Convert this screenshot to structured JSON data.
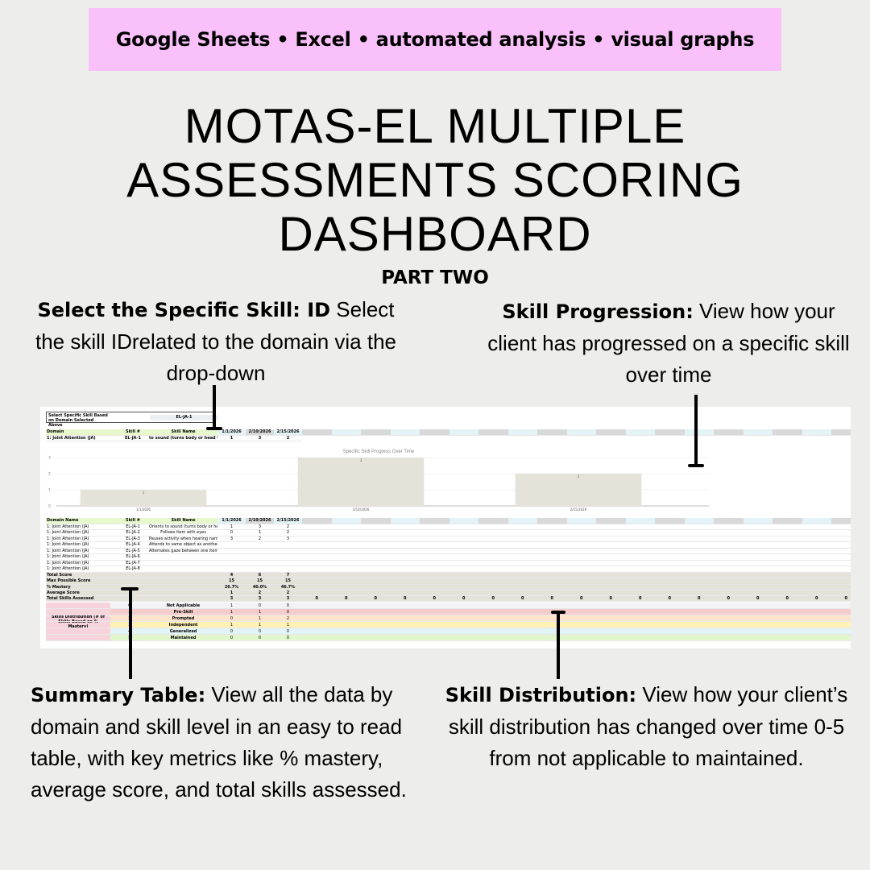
{
  "banner": "Google Sheets • Excel • automated analysis • visual graphs",
  "title": [
    "MOTAS-EL MULTIPLE",
    "ASSESSMENTS SCORING",
    "DASHBOARD"
  ],
  "subtitle": "PART TWO",
  "annotations": {
    "select_skill": {
      "bold": "Select the Specific Skill: ID",
      "text": " Select the skill IDrelated to the domain via the drop-down"
    },
    "progression": {
      "bold": "Skill Progression:",
      "text": " View how your client has progressed on a specific skill over time"
    },
    "summary": {
      "bold": "Summary Table:",
      "text": " View all the data by domain and skill level in an easy to read table, with key metrics like % mastery, average score, and total skills assessed."
    },
    "distribution": {
      "bold": "Skill Distribution:",
      "text": " View how your client’s skill distribution has changed over time 0-5 from not applicable to maintained."
    }
  },
  "sheet": {
    "selector": {
      "label": "Select Specific Skill Based on Domain Selected Above",
      "value": "EL-JA-1",
      "icon": "chevron-down-icon"
    },
    "top_header": [
      "Domain",
      "Skill #",
      "Skill Name",
      "1/1/2026",
      "2/10/2026",
      "2/15/2026"
    ],
    "top_row": [
      "1: Joint Attention (JA)",
      "EL-JA-1",
      "to sound (turns body or head toward",
      "1",
      "3",
      "2"
    ],
    "summary_header": [
      "Domain Name",
      "Skill #",
      "Skill Name",
      "1/1/2026",
      "2/10/2026",
      "2/15/2026"
    ],
    "summary_rows": [
      [
        "1: Joint Attention (JA)",
        "EL-JA-1",
        "Orients to sound (turns body or head",
        "1",
        "3",
        "2"
      ],
      [
        "1: Joint Attention (JA)",
        "EL-JA-2",
        "Follows item with eyes",
        "0",
        "1",
        "2"
      ],
      [
        "1: Joint Attention (JA)",
        "EL-JA-3",
        "Pauses activity when hearing name",
        "3",
        "2",
        "3"
      ],
      [
        "1: Joint Attention (JA)",
        "EL-JA-4",
        "Attends to same object as another",
        "",
        "",
        ""
      ],
      [
        "1: Joint Attention (JA)",
        "EL-JA-5",
        "Alternates gaze between one item",
        "",
        "",
        ""
      ],
      [
        "1: Joint Attention (JA)",
        "EL-JA-6",
        "",
        "",
        "",
        ""
      ],
      [
        "1: Joint Attention (JA)",
        "EL-JA-7",
        "",
        "",
        "",
        ""
      ],
      [
        "1: Joint Attention (JA)",
        "EL-JA-8",
        "",
        "",
        "",
        ""
      ]
    ],
    "metrics": [
      {
        "label": "Total Score",
        "values": [
          "4",
          "6",
          "7"
        ]
      },
      {
        "label": "Max Possible Score",
        "values": [
          "15",
          "15",
          "15"
        ]
      },
      {
        "label": "% Mastery",
        "values": [
          "26.7%",
          "40.0%",
          "46.7%"
        ]
      },
      {
        "label": "Average Score",
        "values": [
          "1",
          "2",
          "2"
        ]
      },
      {
        "label": "Total Skills Assessed",
        "values": [
          "3",
          "3",
          "3"
        ],
        "extra": [
          "0",
          "0",
          "0",
          "0",
          "0",
          "0",
          "0",
          "0",
          "0",
          "0",
          "0",
          "0",
          "0",
          "0",
          "0",
          "0",
          "0",
          "0",
          "0"
        ]
      }
    ],
    "distribution": {
      "label": "Skills Distribution (# of Skills Based on % Mastery)",
      "levels": [
        {
          "level": "0",
          "name": "Not Applicable",
          "values": [
            "1",
            "0",
            "0"
          ],
          "color": "#f3f3f3"
        },
        {
          "level": "1",
          "name": "Pre-Skill",
          "values": [
            "1",
            "1",
            "0"
          ],
          "color": "#f4cccc"
        },
        {
          "level": "2",
          "name": "Prompted",
          "values": [
            "0",
            "1",
            "2"
          ],
          "color": "#fce5cd"
        },
        {
          "level": "3",
          "name": "Independent",
          "values": [
            "1",
            "1",
            "1"
          ],
          "color": "#fff2b3"
        },
        {
          "level": "4",
          "name": "Generalized",
          "values": [
            "0",
            "0",
            "0"
          ],
          "color": "#e3f4f7"
        },
        {
          "level": "5",
          "name": "Maintained",
          "values": [
            "0",
            "0",
            "0"
          ],
          "color": "#e2f7cc"
        }
      ]
    },
    "colors": {
      "header_green": "#e6f8cc",
      "date_blue": "#e4f3f7",
      "date_gray": "#d9d9d9",
      "metric": "#e5e2da",
      "bar": "#e5e2da",
      "dist_label": "#f7d4dc"
    }
  },
  "chart_data": {
    "type": "bar",
    "title": "Specific Skill Progress Over Time",
    "categories": [
      "1/1/2026",
      "2/10/2026",
      "2/15/2026"
    ],
    "values": [
      1,
      3,
      2
    ],
    "data_labels": [
      "1",
      "3",
      "2"
    ],
    "yticks": [
      "0",
      "1",
      "2",
      "3"
    ],
    "ylim": [
      0,
      3
    ],
    "grid": true
  }
}
